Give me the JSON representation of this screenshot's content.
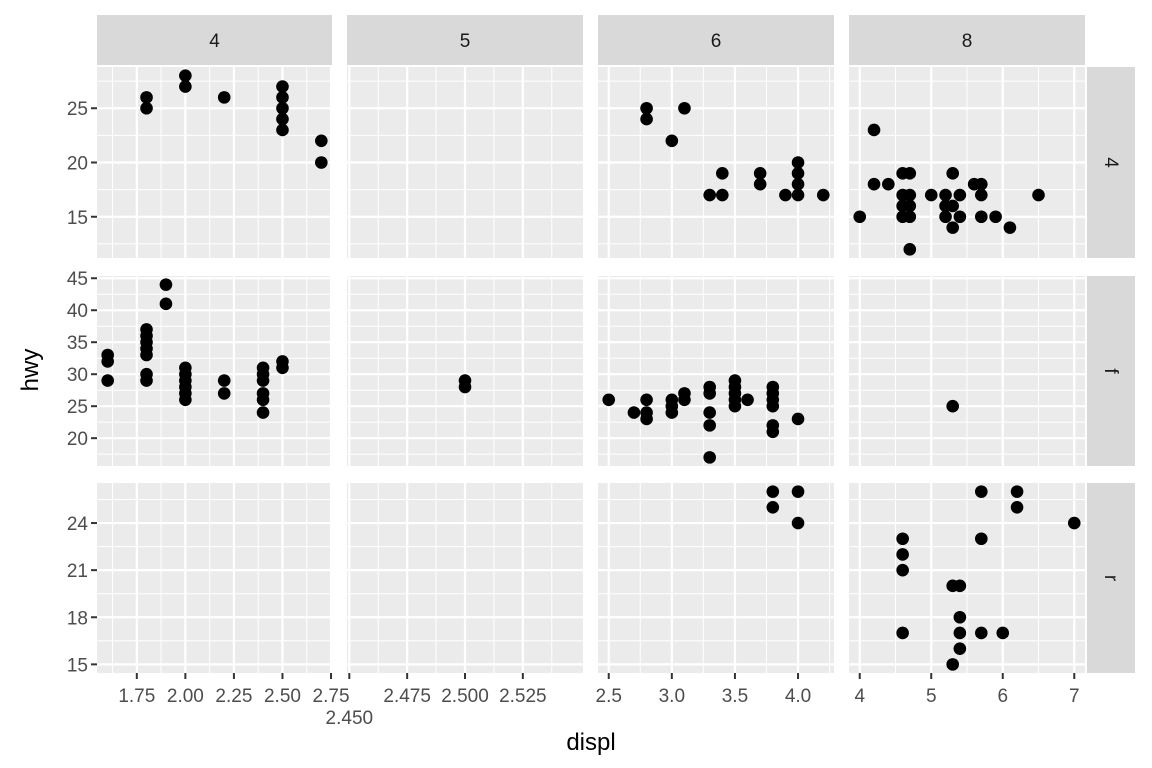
{
  "chart_data": {
    "type": "scatter",
    "xlabel": "displ",
    "ylabel": "hwy",
    "grid": true,
    "facet_cols": [
      "4",
      "5",
      "6",
      "8"
    ],
    "facet_rows": [
      "4",
      "f",
      "r"
    ],
    "x_axes": [
      {
        "range": [
          1.545,
          2.755
        ],
        "ticks": [
          1.75,
          2.0,
          2.25,
          2.5,
          2.75
        ],
        "labels": [
          "1.75",
          "2.00",
          "2.25",
          "2.50",
          "2.75"
        ]
      },
      {
        "range": [
          2.449,
          2.551
        ],
        "ticks": [
          2.45,
          2.475,
          2.5,
          2.525
        ],
        "labels": [
          "2.450",
          "2.475",
          "2.500",
          "2.525"
        ]
      },
      {
        "range": [
          2.415,
          4.285
        ],
        "ticks": [
          2.5,
          3.0,
          3.5,
          4.0
        ],
        "labels": [
          "2.5",
          "3.0",
          "3.5",
          "4.0"
        ]
      },
      {
        "range": [
          3.85,
          7.15
        ],
        "ticks": [
          4,
          5,
          6,
          7
        ],
        "labels": [
          "4",
          "5",
          "6",
          "7"
        ]
      }
    ],
    "y_axes": [
      {
        "range": [
          11.2,
          28.8
        ],
        "ticks": [
          15,
          20,
          25
        ],
        "labels": [
          "15",
          "20",
          "25"
        ]
      },
      {
        "range": [
          15.65,
          45.35
        ],
        "ticks": [
          20,
          25,
          30,
          35,
          40,
          45
        ],
        "labels": [
          "20",
          "25",
          "30",
          "35",
          "40",
          "45"
        ]
      },
      {
        "range": [
          14.45,
          26.55
        ],
        "ticks": [
          15,
          18,
          21,
          24
        ],
        "labels": [
          "15",
          "18",
          "21",
          "24"
        ]
      }
    ],
    "panels": [
      {
        "row": 0,
        "col": 0,
        "points": [
          [
            1.8,
            26
          ],
          [
            1.8,
            25
          ],
          [
            2.0,
            28
          ],
          [
            2.0,
            27
          ],
          [
            2.2,
            26
          ],
          [
            2.5,
            27
          ],
          [
            2.5,
            26
          ],
          [
            2.5,
            25
          ],
          [
            2.5,
            24
          ],
          [
            2.5,
            23
          ],
          [
            2.7,
            22
          ],
          [
            2.7,
            20
          ]
        ]
      },
      {
        "row": 0,
        "col": 2,
        "points": [
          [
            2.8,
            25
          ],
          [
            2.8,
            24
          ],
          [
            3.0,
            22
          ],
          [
            3.1,
            25
          ],
          [
            3.3,
            17
          ],
          [
            3.4,
            19
          ],
          [
            3.4,
            17
          ],
          [
            3.7,
            19
          ],
          [
            3.7,
            18
          ],
          [
            3.9,
            17
          ],
          [
            4.0,
            20
          ],
          [
            4.0,
            19
          ],
          [
            4.0,
            18
          ],
          [
            4.0,
            17
          ],
          [
            4.2,
            17
          ]
        ]
      },
      {
        "row": 0,
        "col": 3,
        "points": [
          [
            4.0,
            15
          ],
          [
            4.2,
            23
          ],
          [
            4.2,
            18
          ],
          [
            4.4,
            18
          ],
          [
            4.6,
            19
          ],
          [
            4.6,
            17
          ],
          [
            4.6,
            16
          ],
          [
            4.6,
            15
          ],
          [
            4.7,
            19
          ],
          [
            4.7,
            17
          ],
          [
            4.7,
            16
          ],
          [
            4.7,
            15
          ],
          [
            4.7,
            12
          ],
          [
            5.0,
            17
          ],
          [
            5.2,
            17
          ],
          [
            5.2,
            16
          ],
          [
            5.2,
            15
          ],
          [
            5.3,
            19
          ],
          [
            5.3,
            16
          ],
          [
            5.3,
            14
          ],
          [
            5.4,
            17
          ],
          [
            5.4,
            15
          ],
          [
            5.6,
            18
          ],
          [
            5.7,
            18
          ],
          [
            5.7,
            17
          ],
          [
            5.7,
            15
          ],
          [
            5.9,
            15
          ],
          [
            6.1,
            14
          ],
          [
            6.5,
            17
          ]
        ]
      },
      {
        "row": 1,
        "col": 0,
        "points": [
          [
            1.6,
            33
          ],
          [
            1.6,
            32
          ],
          [
            1.6,
            29
          ],
          [
            1.8,
            37
          ],
          [
            1.8,
            36
          ],
          [
            1.8,
            35
          ],
          [
            1.8,
            34
          ],
          [
            1.8,
            33
          ],
          [
            1.8,
            30
          ],
          [
            1.8,
            29
          ],
          [
            1.9,
            44
          ],
          [
            1.9,
            41
          ],
          [
            2.0,
            31
          ],
          [
            2.0,
            30
          ],
          [
            2.0,
            29
          ],
          [
            2.0,
            28
          ],
          [
            2.0,
            27
          ],
          [
            2.0,
            26
          ],
          [
            2.2,
            29
          ],
          [
            2.2,
            27
          ],
          [
            2.4,
            31
          ],
          [
            2.4,
            30
          ],
          [
            2.4,
            29
          ],
          [
            2.4,
            27
          ],
          [
            2.4,
            26
          ],
          [
            2.4,
            24
          ],
          [
            2.5,
            32
          ],
          [
            2.5,
            31
          ]
        ]
      },
      {
        "row": 1,
        "col": 1,
        "points": [
          [
            2.5,
            29
          ],
          [
            2.5,
            28
          ]
        ]
      },
      {
        "row": 1,
        "col": 2,
        "points": [
          [
            2.5,
            26
          ],
          [
            2.7,
            24
          ],
          [
            2.8,
            26
          ],
          [
            2.8,
            24
          ],
          [
            2.8,
            23
          ],
          [
            3.0,
            26
          ],
          [
            3.0,
            25
          ],
          [
            3.0,
            24
          ],
          [
            3.1,
            27
          ],
          [
            3.1,
            26
          ],
          [
            3.3,
            28
          ],
          [
            3.3,
            27
          ],
          [
            3.3,
            24
          ],
          [
            3.3,
            22
          ],
          [
            3.3,
            17
          ],
          [
            3.5,
            29
          ],
          [
            3.5,
            28
          ],
          [
            3.5,
            27
          ],
          [
            3.5,
            26
          ],
          [
            3.5,
            25
          ],
          [
            3.6,
            26
          ],
          [
            3.8,
            28
          ],
          [
            3.8,
            27
          ],
          [
            3.8,
            26
          ],
          [
            3.8,
            25
          ],
          [
            3.8,
            22
          ],
          [
            3.8,
            21
          ],
          [
            4.0,
            23
          ]
        ]
      },
      {
        "row": 1,
        "col": 3,
        "points": [
          [
            5.3,
            25
          ]
        ]
      },
      {
        "row": 2,
        "col": 2,
        "points": [
          [
            3.8,
            26
          ],
          [
            3.8,
            25
          ],
          [
            4.0,
            26
          ],
          [
            4.0,
            24
          ]
        ]
      },
      {
        "row": 2,
        "col": 3,
        "points": [
          [
            4.6,
            23
          ],
          [
            4.6,
            22
          ],
          [
            4.6,
            21
          ],
          [
            4.6,
            17
          ],
          [
            5.3,
            20
          ],
          [
            5.3,
            15
          ],
          [
            5.4,
            20
          ],
          [
            5.4,
            18
          ],
          [
            5.4,
            17
          ],
          [
            5.4,
            16
          ],
          [
            5.7,
            26
          ],
          [
            5.7,
            23
          ],
          [
            5.7,
            17
          ],
          [
            6.0,
            17
          ],
          [
            6.2,
            26
          ],
          [
            6.2,
            25
          ],
          [
            7.0,
            24
          ]
        ]
      }
    ],
    "colors": {
      "panel_bg": "#EBEBEB",
      "strip_bg": "#D9D9D9",
      "grid": "#FFFFFF",
      "point": "#000000"
    }
  }
}
